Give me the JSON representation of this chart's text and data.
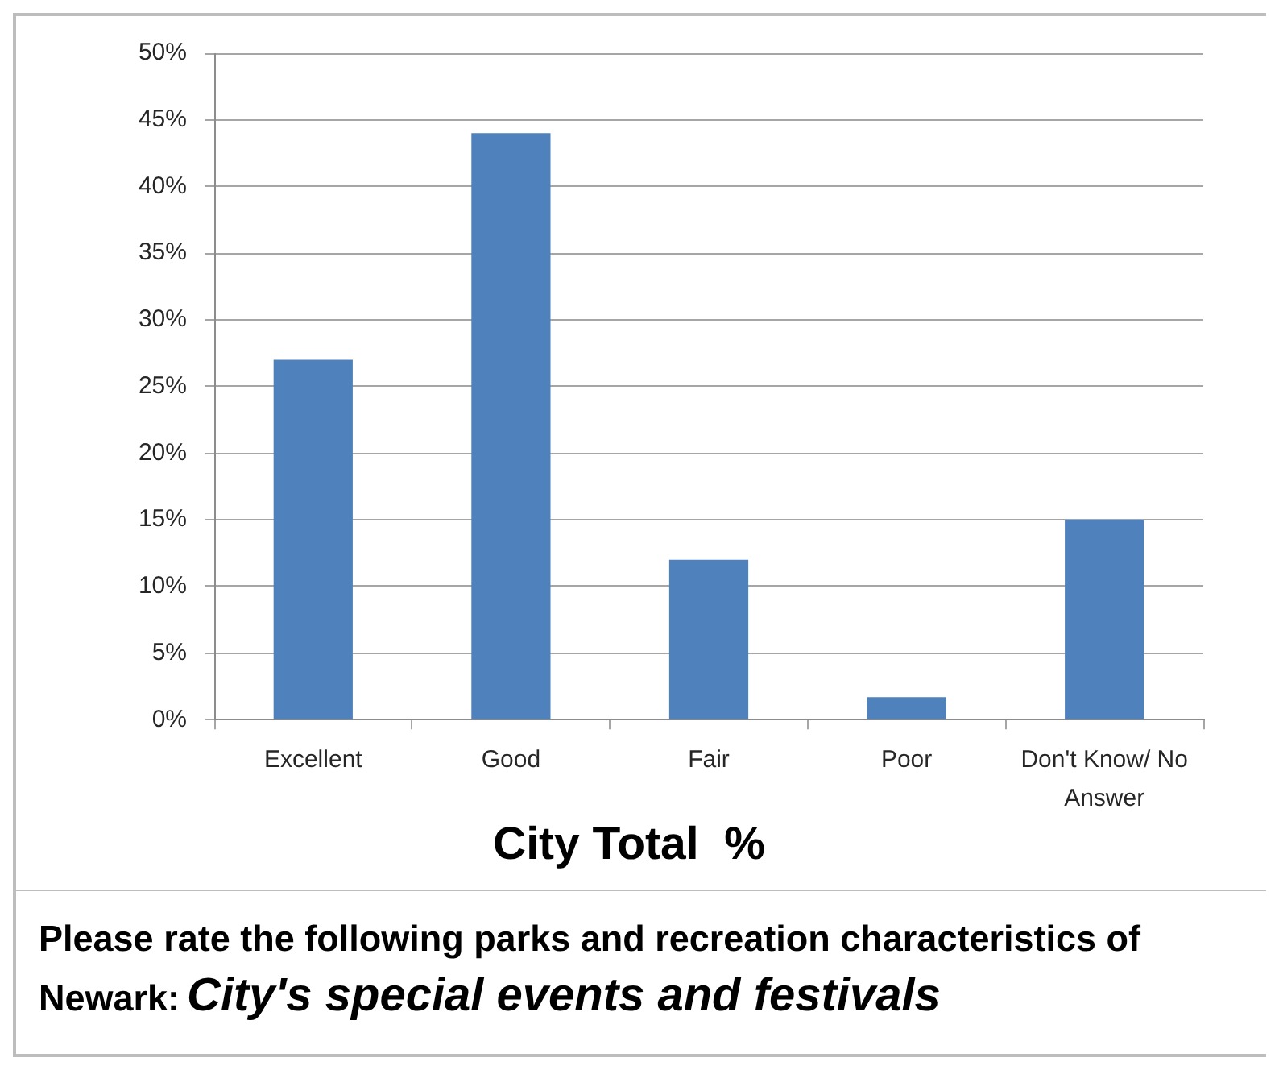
{
  "chart_data": {
    "type": "bar",
    "xlabel": "City Total  %",
    "categories": [
      "Excellent",
      "Good",
      "Fair",
      "Poor",
      "Don't Know/ No Answer"
    ],
    "values": [
      27,
      44,
      12,
      1.7,
      15
    ],
    "color": "#4f81bd",
    "ylim": [
      0,
      50
    ],
    "yticks": [
      {
        "value": 0,
        "label": "0%"
      },
      {
        "value": 5,
        "label": "5%"
      },
      {
        "value": 10,
        "label": "10%"
      },
      {
        "value": 15,
        "label": "15%"
      },
      {
        "value": 20,
        "label": "20%"
      },
      {
        "value": 25,
        "label": "25%"
      },
      {
        "value": 30,
        "label": "30%"
      },
      {
        "value": 35,
        "label": "35%"
      },
      {
        "value": 40,
        "label": "40%"
      },
      {
        "value": 45,
        "label": "45%"
      },
      {
        "value": 50,
        "label": "50%"
      }
    ],
    "grid": "y",
    "annotations": [
      "Please rate the following parks and recreation characteristics of",
      "Newark:",
      "City's special events and festivals"
    ]
  }
}
